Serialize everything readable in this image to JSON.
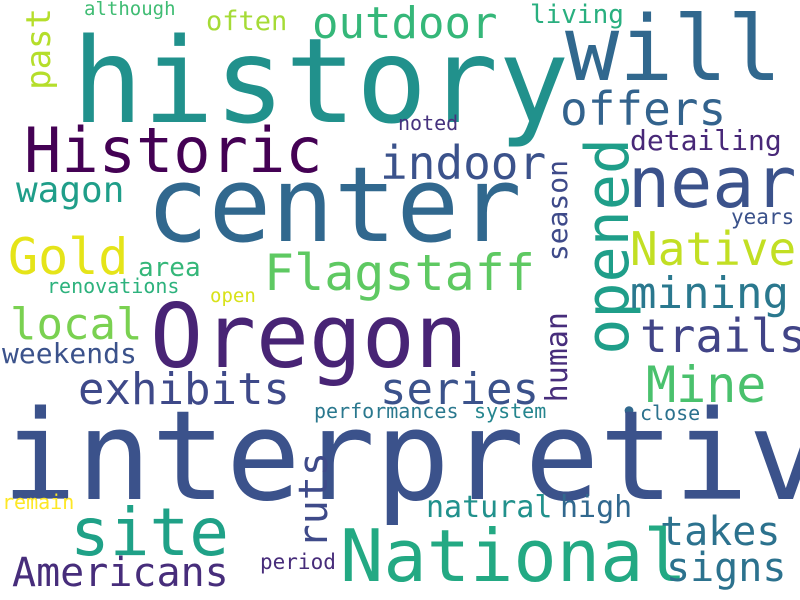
{
  "words": {
    "history": {
      "text": "history",
      "color": "#21918c"
    },
    "will": {
      "text": "will",
      "color": "#31688e"
    },
    "outdoor": {
      "text": "outdoor",
      "color": "#35b779"
    },
    "although": {
      "text": "although",
      "color": "#3fbc73"
    },
    "often": {
      "text": "often",
      "color": "#a5db36"
    },
    "living": {
      "text": "living",
      "color": "#29af7f"
    },
    "past": {
      "text": "past",
      "color": "#b5de2b"
    },
    "offers": {
      "text": "offers",
      "color": "#33638d"
    },
    "noted": {
      "text": "noted",
      "color": "#46327e"
    },
    "historic": {
      "text": "Historic",
      "color": "#440154"
    },
    "indoor": {
      "text": "indoor",
      "color": "#3b528b"
    },
    "detailing": {
      "text": "detailing",
      "color": "#482878"
    },
    "center": {
      "text": "center",
      "color": "#31688e"
    },
    "near": {
      "text": "near",
      "color": "#3b528b"
    },
    "opened": {
      "text": "opened",
      "color": "#1f9e89"
    },
    "wagon": {
      "text": "wagon",
      "color": "#1f9e89"
    },
    "years": {
      "text": "years",
      "color": "#3b528b"
    },
    "gold": {
      "text": "Gold",
      "color": "#e5e419"
    },
    "area": {
      "text": "area",
      "color": "#35b779"
    },
    "flagstaff": {
      "text": "Flagstaff",
      "color": "#5ec962"
    },
    "season": {
      "text": "season",
      "color": "#3e4a89"
    },
    "native": {
      "text": "Native",
      "color": "#c2df23"
    },
    "renovations": {
      "text": "renovations",
      "color": "#2db27d"
    },
    "open": {
      "text": "open",
      "color": "#d8e219"
    },
    "mining": {
      "text": "mining",
      "color": "#2a788e"
    },
    "local": {
      "text": "local",
      "color": "#7ad151"
    },
    "oregon": {
      "text": "Oregon",
      "color": "#482475"
    },
    "trails": {
      "text": "trails",
      "color": "#414487"
    },
    "weekends": {
      "text": "weekends",
      "color": "#3b528b"
    },
    "human": {
      "text": "human",
      "color": "#472d7b"
    },
    "exhibits": {
      "text": "exhibits",
      "color": "#3e4989"
    },
    "series": {
      "text": "series",
      "color": "#3b528b"
    },
    "mine": {
      "text": "Mine",
      "color": "#4ac16d"
    },
    "performances": {
      "text": "performances",
      "color": "#2a788e"
    },
    "system": {
      "text": "system",
      "color": "#25858e"
    },
    "close": {
      "text": "close",
      "color": "#2c728e"
    },
    "dot": {
      "text": "•",
      "color": "#31688e"
    },
    "interpretive": {
      "text": "interpretive",
      "color": "#3b528b"
    },
    "remain": {
      "text": "remain",
      "color": "#fde725"
    },
    "site": {
      "text": "site",
      "color": "#1fa187"
    },
    "ruts": {
      "text": "ruts",
      "color": "#3e4a89"
    },
    "natural": {
      "text": "natural",
      "color": "#21918c"
    },
    "high": {
      "text": "high",
      "color": "#31688e"
    },
    "national": {
      "text": "National",
      "color": "#23a983"
    },
    "takes": {
      "text": "takes",
      "color": "#2c728e"
    },
    "period": {
      "text": "period",
      "color": "#472c7a"
    },
    "americans": {
      "text": "Americans",
      "color": "#472d7b"
    },
    "signs": {
      "text": "signs",
      "color": "#2c728e"
    }
  }
}
